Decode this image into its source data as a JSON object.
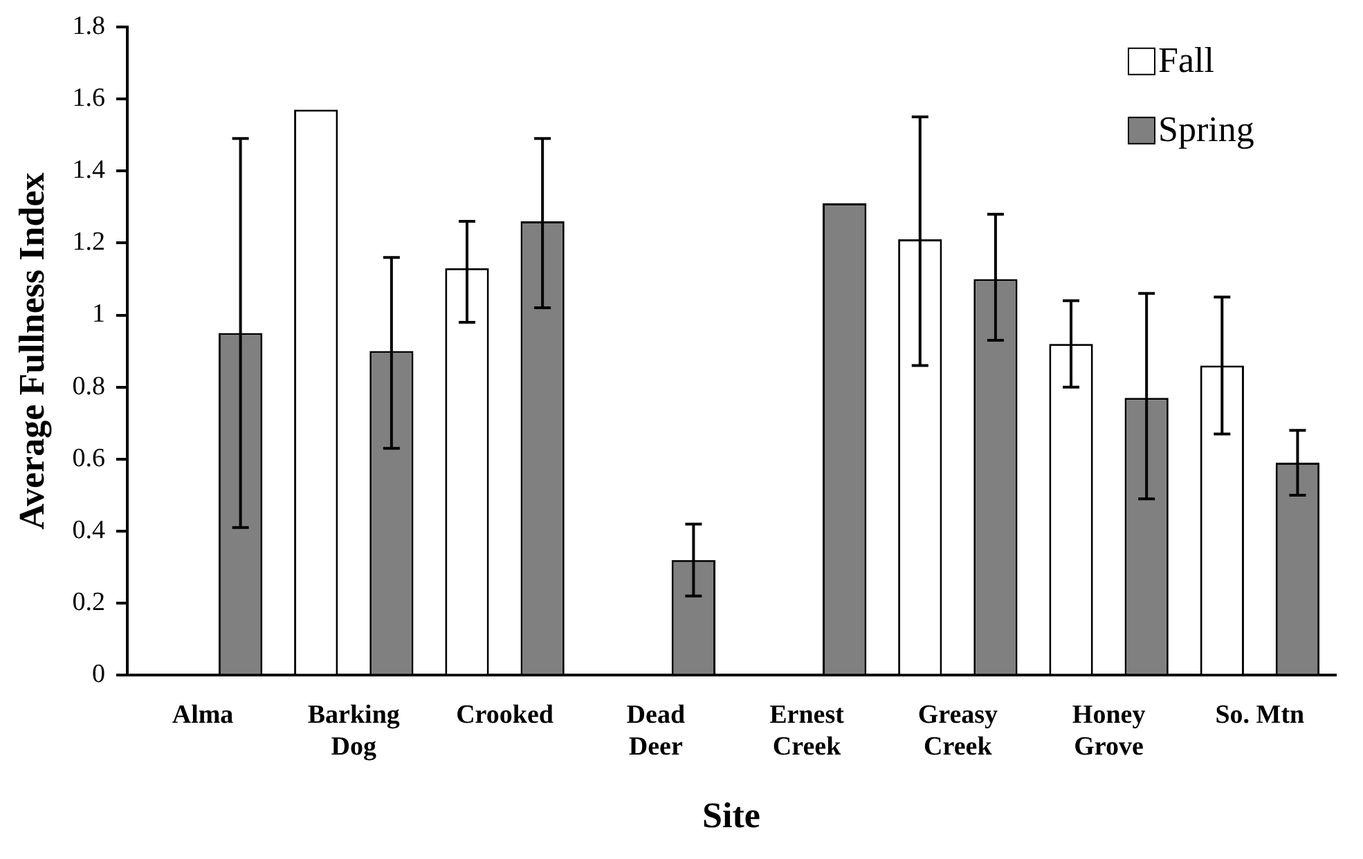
{
  "chart_data": {
    "type": "bar",
    "xlabel": "Site",
    "ylabel": "Average Fullness Index",
    "categories": [
      "Alma",
      "Barking\nDog",
      "Crooked",
      "Dead\nDeer",
      "Ernest\nCreek",
      "Greasy\nCreek",
      "Honey\nGrove",
      "So. Mtn"
    ],
    "series": [
      {
        "name": "Fall",
        "color": "#ffffff",
        "values": [
          null,
          1.57,
          1.13,
          null,
          null,
          1.21,
          0.92,
          0.86
        ],
        "errors": [
          null,
          null,
          [
            0.98,
            1.26
          ],
          null,
          null,
          [
            0.86,
            1.55
          ],
          [
            0.8,
            1.04
          ],
          [
            0.67,
            1.05
          ]
        ]
      },
      {
        "name": "Spring",
        "color": "#808080",
        "values": [
          0.95,
          0.9,
          1.26,
          0.32,
          1.31,
          1.1,
          0.77,
          0.59
        ],
        "errors": [
          [
            0.41,
            1.49
          ],
          [
            0.63,
            1.16
          ],
          [
            1.02,
            1.49
          ],
          [
            0.22,
            0.42
          ],
          null,
          [
            0.93,
            1.28
          ],
          [
            0.49,
            1.06
          ],
          [
            0.5,
            0.68
          ]
        ]
      }
    ],
    "ylim": [
      0,
      1.8
    ],
    "yticks": [
      0,
      0.2,
      0.4,
      0.6,
      0.8,
      1,
      1.2,
      1.4,
      1.6,
      1.8
    ],
    "grid": false,
    "legend": "top right"
  }
}
